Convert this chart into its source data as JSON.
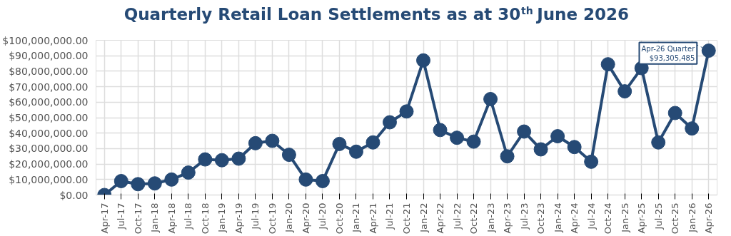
{
  "chart_data": {
    "type": "line",
    "title": "Quarterly Retail Loan Settlements as at 30$^{th}$ June 2026",
    "categories": [
      "Apr-17",
      "Jul-17",
      "Oct-17",
      "Jan-18",
      "Apr-18",
      "Jul-18",
      "Oct-18",
      "Jan-19",
      "Apr-19",
      "Jul-19",
      "Oct-19",
      "Jan-20",
      "Apr-20",
      "Jul-20",
      "Oct-20",
      "Jan-21",
      "Apr-21",
      "Jul-21",
      "Oct-21",
      "Jan-22",
      "Apr-22",
      "Jul-22",
      "Oct-22",
      "Jan-23",
      "Apr-23",
      "Jul-23",
      "Oct-23",
      "Jan-24",
      "Apr-24",
      "Jul-24",
      "Oct-24",
      "Jan-25",
      "Apr-25",
      "Jul-25",
      "Oct-25",
      "Jan-26",
      "Apr-26"
    ],
    "series": [
      {
        "color": "#264a75",
        "values": [
          0,
          9000000,
          7000000,
          7500000,
          10000000,
          14500000,
          23000000,
          22500000,
          23500000,
          33500000,
          35000000,
          26000000,
          10000000,
          9000000,
          33000000,
          28000000,
          34000000,
          47000000,
          54000000,
          87000000,
          42000000,
          37000000,
          34500000,
          62000000,
          25000000,
          41000000,
          29500000,
          38000000,
          31000000,
          21500000,
          84500000,
          67000000,
          82000000,
          34000000,
          53000000,
          43000000,
          93305485
        ]
      }
    ],
    "ylim": [
      0,
      100000000
    ],
    "yticks": [
      {
        "value": 0,
        "label": "$0.00"
      },
      {
        "value": 10000000,
        "label": "$10,000,000.00"
      },
      {
        "value": 20000000,
        "label": "$20,000,000.00"
      },
      {
        "value": 30000000,
        "label": "$30,000,000.00"
      },
      {
        "value": 40000000,
        "label": "$40,000,000.00"
      },
      {
        "value": 50000000,
        "label": "$50,000,000.00"
      },
      {
        "value": 60000000,
        "label": "$60,000,000.00"
      },
      {
        "value": 70000000,
        "label": "$70,000,000.00"
      },
      {
        "value": 80000000,
        "label": "$80,000,000.00"
      },
      {
        "value": 90000000,
        "label": "$90,000,000.00"
      },
      {
        "value": 100000000,
        "label": "$100,000,000.00"
      }
    ],
    "annotations": [
      {
        "text": "Apr-26 Quarter\n$93,305,485",
        "x": "Apr-26",
        "y": 93305485
      }
    ],
    "grid": true,
    "marker": "circle",
    "line_style": "solid"
  }
}
